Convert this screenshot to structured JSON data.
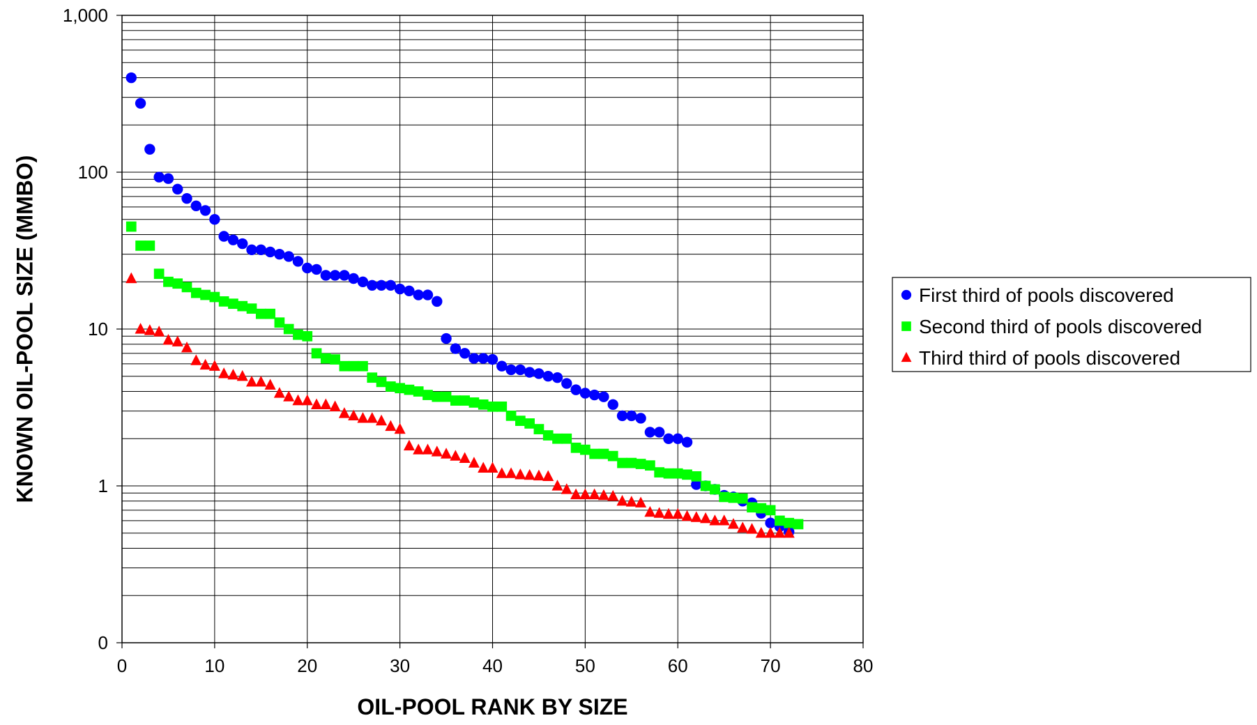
{
  "chart_data": {
    "type": "scatter",
    "title": "",
    "xlabel": "OIL-POOL RANK BY SIZE",
    "ylabel": "KNOWN OIL-POOL SIZE (MMBO)",
    "xlim": [
      0,
      80
    ],
    "ylim": [
      0.1,
      1000
    ],
    "y_scale": "log",
    "grid": true,
    "legend_position": "right",
    "x_ticks": [
      0,
      10,
      20,
      30,
      40,
      50,
      60,
      70,
      80
    ],
    "x_tick_labels": [
      "0",
      "10",
      "20",
      "30",
      "40",
      "50",
      "60",
      "70",
      "80"
    ],
    "y_ticks": [
      0.1,
      1,
      10,
      100,
      1000
    ],
    "y_tick_labels": [
      "0",
      "1",
      "10",
      "100",
      "1,000"
    ],
    "series": [
      {
        "name": "First third of pools discovered",
        "marker": "circle",
        "color": "#0000ff",
        "x": [
          1,
          2,
          3,
          4,
          5,
          6,
          7,
          8,
          9,
          10,
          11,
          12,
          13,
          14,
          15,
          16,
          17,
          18,
          19,
          20,
          21,
          22,
          23,
          24,
          25,
          26,
          27,
          28,
          29,
          30,
          31,
          32,
          33,
          34,
          35,
          36,
          37,
          38,
          39,
          40,
          41,
          42,
          43,
          44,
          45,
          46,
          47,
          48,
          49,
          50,
          51,
          52,
          53,
          54,
          55,
          56,
          57,
          58,
          59,
          60,
          61,
          62,
          63,
          64,
          65,
          66,
          67,
          68,
          69,
          70,
          71,
          72
        ],
        "y": [
          400,
          275,
          140,
          93,
          91,
          78,
          68,
          61,
          57,
          50,
          39,
          37,
          35,
          32,
          32,
          31,
          30,
          29,
          27,
          24.5,
          24,
          22,
          22,
          22,
          21,
          20,
          19,
          19,
          19,
          18,
          17.5,
          16.5,
          16.5,
          15,
          8.7,
          7.5,
          7,
          6.5,
          6.5,
          6.4,
          5.8,
          5.5,
          5.5,
          5.3,
          5.2,
          5,
          4.9,
          4.5,
          4.1,
          3.9,
          3.8,
          3.7,
          3.3,
          2.8,
          2.8,
          2.7,
          2.2,
          2.2,
          2,
          2,
          1.9,
          1.02,
          1,
          0.95,
          0.87,
          0.85,
          0.8,
          0.78,
          0.67,
          0.58,
          0.55,
          0.51
        ]
      },
      {
        "name": "Second third of pools discovered",
        "marker": "square",
        "color": "#00ff00",
        "x": [
          1,
          2,
          3,
          4,
          5,
          6,
          7,
          8,
          9,
          10,
          11,
          12,
          13,
          14,
          15,
          16,
          17,
          18,
          19,
          20,
          21,
          22,
          23,
          24,
          25,
          26,
          27,
          28,
          29,
          30,
          31,
          32,
          33,
          34,
          35,
          36,
          37,
          38,
          39,
          40,
          41,
          42,
          43,
          44,
          45,
          46,
          47,
          48,
          49,
          50,
          51,
          52,
          53,
          54,
          55,
          56,
          57,
          58,
          59,
          60,
          61,
          62,
          63,
          64,
          65,
          66,
          67,
          68,
          69,
          70,
          71,
          72,
          73
        ],
        "y": [
          45,
          34,
          34,
          22.5,
          20,
          19.5,
          18.5,
          17,
          16.5,
          16,
          15,
          14.5,
          14,
          13.5,
          12.5,
          12.5,
          11,
          10,
          9.2,
          9,
          7,
          6.5,
          6.4,
          5.8,
          5.8,
          5.8,
          4.9,
          4.6,
          4.3,
          4.2,
          4.1,
          4,
          3.8,
          3.7,
          3.7,
          3.5,
          3.5,
          3.4,
          3.3,
          3.2,
          3.2,
          2.8,
          2.6,
          2.5,
          2.3,
          2.1,
          2,
          2,
          1.75,
          1.7,
          1.6,
          1.6,
          1.55,
          1.4,
          1.4,
          1.38,
          1.35,
          1.22,
          1.2,
          1.2,
          1.18,
          1.15,
          1,
          0.95,
          0.85,
          0.84,
          0.83,
          0.73,
          0.72,
          0.7,
          0.6,
          0.58,
          0.57
        ]
      },
      {
        "name": "Third third of pools discovered",
        "marker": "triangle",
        "color": "#ff0000",
        "x": [
          1,
          2,
          3,
          4,
          5,
          6,
          7,
          8,
          9,
          10,
          11,
          12,
          13,
          14,
          15,
          16,
          17,
          18,
          19,
          20,
          21,
          22,
          23,
          24,
          25,
          26,
          27,
          28,
          29,
          30,
          31,
          32,
          33,
          34,
          35,
          36,
          37,
          38,
          39,
          40,
          41,
          42,
          43,
          44,
          45,
          46,
          47,
          48,
          49,
          50,
          51,
          52,
          53,
          54,
          55,
          56,
          57,
          58,
          59,
          60,
          61,
          62,
          63,
          64,
          65,
          66,
          67,
          68,
          69,
          70,
          71,
          72
        ],
        "y": [
          21,
          10,
          9.8,
          9.6,
          8.5,
          8.3,
          7.6,
          6.3,
          5.9,
          5.8,
          5.2,
          5.1,
          5,
          4.6,
          4.6,
          4.4,
          3.9,
          3.7,
          3.5,
          3.5,
          3.3,
          3.3,
          3.2,
          2.9,
          2.8,
          2.7,
          2.7,
          2.6,
          2.4,
          2.3,
          1.8,
          1.7,
          1.7,
          1.65,
          1.6,
          1.55,
          1.5,
          1.4,
          1.3,
          1.3,
          1.2,
          1.2,
          1.18,
          1.17,
          1.16,
          1.15,
          1,
          0.95,
          0.88,
          0.88,
          0.88,
          0.87,
          0.86,
          0.8,
          0.79,
          0.78,
          0.68,
          0.67,
          0.66,
          0.66,
          0.64,
          0.63,
          0.62,
          0.6,
          0.6,
          0.57,
          0.54,
          0.53,
          0.5,
          0.5,
          0.5,
          0.5
        ]
      }
    ]
  }
}
